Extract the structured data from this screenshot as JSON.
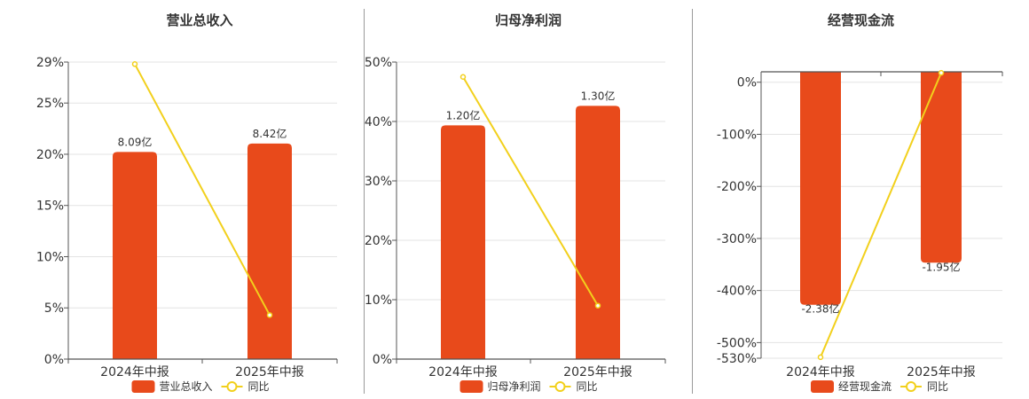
{
  "chart_data": [
    {
      "type": "bar",
      "title": "营业总收入",
      "categories": [
        "2024年中报",
        "2025年中报"
      ],
      "series": [
        {
          "name": "营业总收入",
          "type": "bar",
          "values": [
            8.09,
            8.42
          ],
          "labels": [
            "8.09亿",
            "8.42亿"
          ],
          "color": "#e84a1b"
        },
        {
          "name": "同比",
          "type": "line",
          "values": [
            28.8,
            4.3
          ],
          "color": "#f2d01c"
        }
      ],
      "yticks": [
        "0%",
        "5%",
        "10%",
        "15%",
        "20%",
        "25%",
        "29%"
      ],
      "ylim": [
        0,
        29
      ],
      "bar_scale": 0.4,
      "grid": true,
      "legend": "bottom"
    },
    {
      "type": "bar",
      "title": "归母净利润",
      "categories": [
        "2024年中报",
        "2025年中报"
      ],
      "series": [
        {
          "name": "归母净利润",
          "type": "bar",
          "values": [
            1.2,
            1.3
          ],
          "labels": [
            "1.20亿",
            "1.30亿"
          ],
          "color": "#e84a1b"
        },
        {
          "name": "同比",
          "type": "line",
          "values": [
            47.5,
            9.0
          ],
          "color": "#f2d01c"
        }
      ],
      "yticks": [
        "0%",
        "10%",
        "20%",
        "30%",
        "40%",
        "50%"
      ],
      "ylim": [
        0,
        50
      ],
      "bar_scale": 0.0305,
      "grid": true,
      "legend": "bottom"
    },
    {
      "type": "bar",
      "title": "经营现金流",
      "categories": [
        "2024年中报",
        "2025年中报"
      ],
      "series": [
        {
          "name": "经营现金流",
          "type": "bar",
          "values": [
            -2.38,
            -1.95
          ],
          "labels": [
            "-2.38亿",
            "-1.95亿"
          ],
          "color": "#e84a1b"
        },
        {
          "name": "同比",
          "type": "line",
          "values": [
            -528,
            18
          ],
          "color": "#f2d01c"
        }
      ],
      "yticks": [
        "-530%",
        "-500%",
        "-400%",
        "-300%",
        "-200%",
        "-100%",
        "0%"
      ],
      "ylim": [
        -530,
        20
      ],
      "bar_scale": 0.00532,
      "grid": true,
      "legend": "bottom"
    }
  ]
}
